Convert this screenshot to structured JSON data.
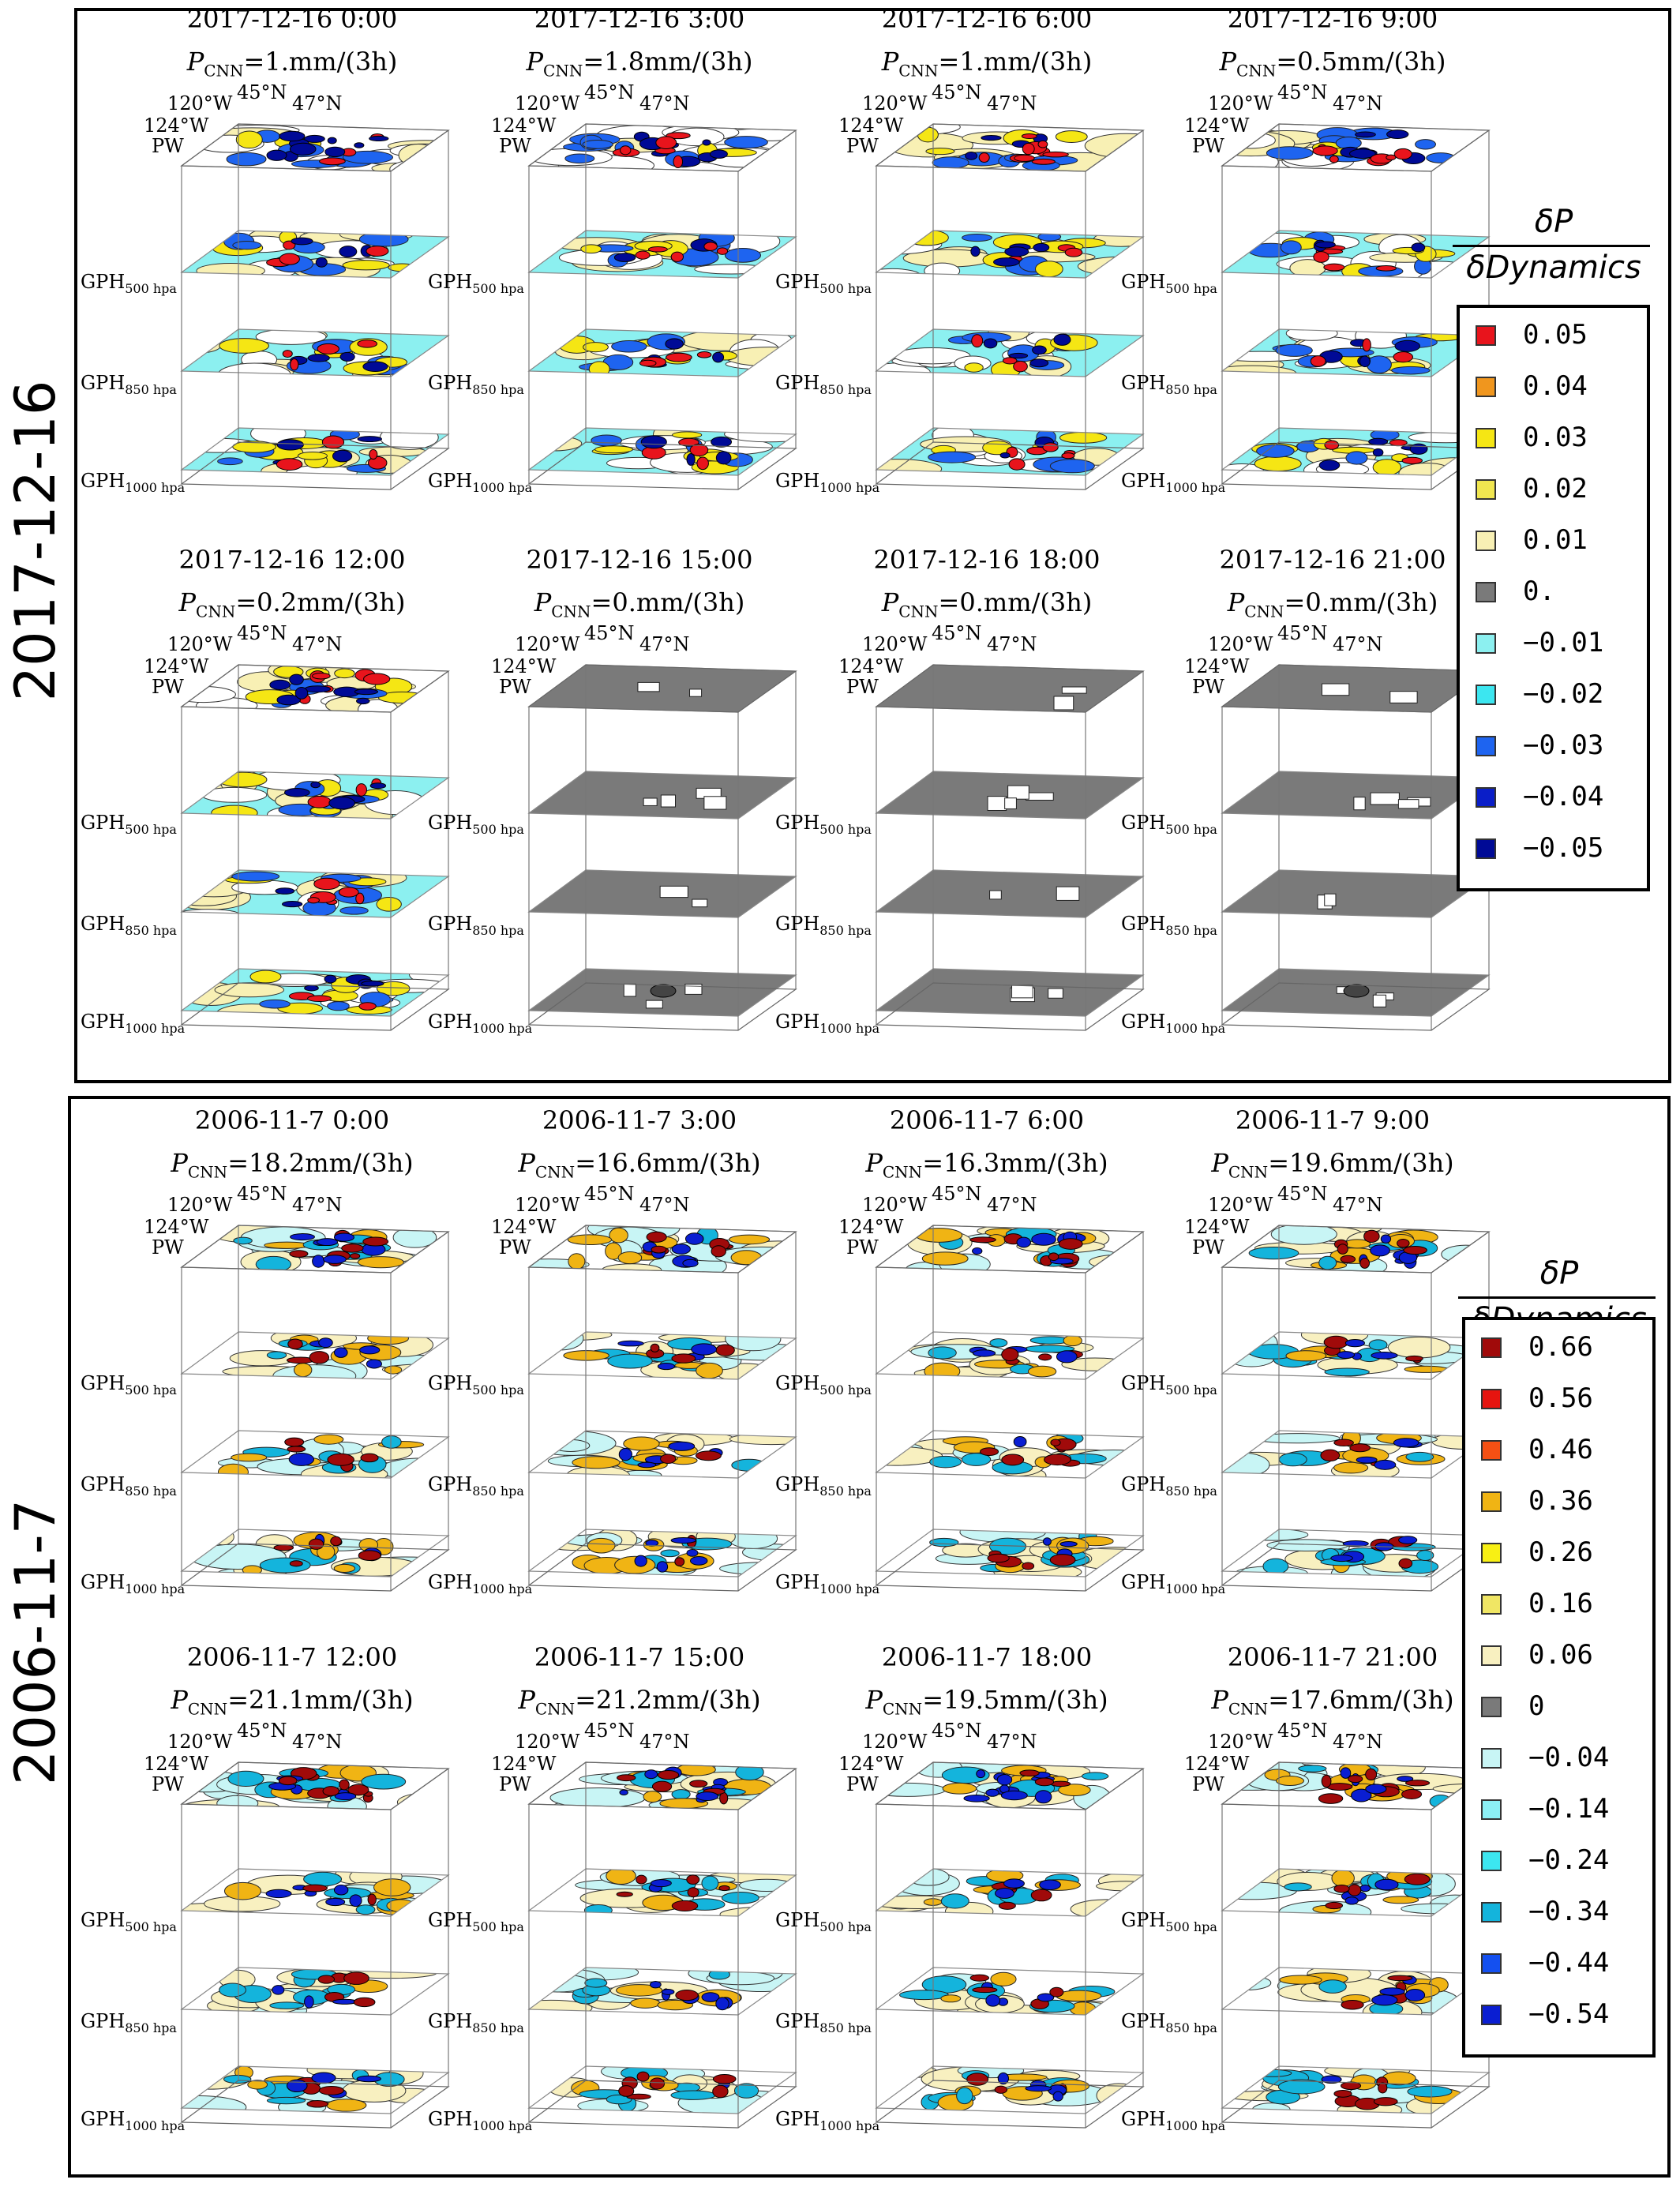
{
  "chart_data": {
    "type": "heatmap",
    "colorbar_label": {
      "numerator": "δP",
      "denominator": "δDynamics"
    },
    "layer_labels": {
      "pw": "PW",
      "gph500": {
        "base": "GPH",
        "sub": "500 hpa"
      },
      "gph850": {
        "base": "GPH",
        "sub": "850 hpa"
      },
      "gph1000": {
        "base": "GPH",
        "sub": "1000 hpa"
      }
    },
    "axis_labels": {
      "lon_a": "120°W",
      "lon_b": "124°W",
      "lat_a": "45°N",
      "lat_b": "47°N"
    },
    "pcnn_prefix": "P",
    "pcnn_sub": "CNN",
    "groups": [
      {
        "label": "2017-12-16",
        "legend": {
          "entries": [
            {
              "value": "0.05",
              "color": "#e8141c"
            },
            {
              "value": "0.04",
              "color": "#f0961e"
            },
            {
              "value": "0.03",
              "color": "#f5e614"
            },
            {
              "value": "0.02",
              "color": "#f0e650"
            },
            {
              "value": "0.01",
              "color": "#f8f0b4"
            },
            {
              "value": "0.",
              "color": "#7a7a7a"
            },
            {
              "value": "-0.01",
              "color": "#8cf0f0"
            },
            {
              "value": "-0.02",
              "color": "#3ce6f0"
            },
            {
              "value": "-0.03",
              "color": "#1e64f0"
            },
            {
              "value": "-0.04",
              "color": "#0a1ec8"
            },
            {
              "value": "-0.05",
              "color": "#000a96"
            }
          ]
        },
        "panels": [
          {
            "time": "2017-12-16 0:00",
            "pcnn": "=1.mm/(3h)",
            "mode": "mixed"
          },
          {
            "time": "2017-12-16 3:00",
            "pcnn": "=1.8mm/(3h)",
            "mode": "mixed"
          },
          {
            "time": "2017-12-16 6:00",
            "pcnn": "=1.mm/(3h)",
            "mode": "mixed"
          },
          {
            "time": "2017-12-16 9:00",
            "pcnn": "=0.5mm/(3h)",
            "mode": "mixed"
          },
          {
            "time": "2017-12-16 12:00",
            "pcnn": "=0.2mm/(3h)",
            "mode": "mixed"
          },
          {
            "time": "2017-12-16 15:00",
            "pcnn": "=0.mm/(3h)",
            "mode": "gray"
          },
          {
            "time": "2017-12-16 18:00",
            "pcnn": "=0.mm/(3h)",
            "mode": "gray"
          },
          {
            "time": "2017-12-16 21:00",
            "pcnn": "=0.mm/(3h)",
            "mode": "gray"
          }
        ]
      },
      {
        "label": "2006-11-7",
        "legend": {
          "entries": [
            {
              "value": "0.66",
              "color": "#a00a0a"
            },
            {
              "value": "0.56",
              "color": "#e6140f"
            },
            {
              "value": "0.46",
              "color": "#f55014"
            },
            {
              "value": "0.36",
              "color": "#f0b414"
            },
            {
              "value": "0.26",
              "color": "#f8f014"
            },
            {
              "value": "0.16",
              "color": "#f0e664"
            },
            {
              "value": "0.06",
              "color": "#f8f0c0"
            },
            {
              "value": "0",
              "color": "#7a7a7a"
            },
            {
              "value": "-0.04",
              "color": "#c8f5f5"
            },
            {
              "value": "-0.14",
              "color": "#8cf0f5"
            },
            {
              "value": "-0.24",
              "color": "#3ce6f0"
            },
            {
              "value": "-0.34",
              "color": "#14b4dc"
            },
            {
              "value": "-0.44",
              "color": "#1450f0"
            },
            {
              "value": "-0.54",
              "color": "#0a1ed2"
            }
          ]
        },
        "panels": [
          {
            "time": "2006-11-7 0:00",
            "pcnn": "=18.2mm/(3h)",
            "mode": "mixed"
          },
          {
            "time": "2006-11-7 3:00",
            "pcnn": "=16.6mm/(3h)",
            "mode": "mixed"
          },
          {
            "time": "2006-11-7 6:00",
            "pcnn": "=16.3mm/(3h)",
            "mode": "mixed"
          },
          {
            "time": "2006-11-7 9:00",
            "pcnn": "=19.6mm/(3h)",
            "mode": "mixed"
          },
          {
            "time": "2006-11-7 12:00",
            "pcnn": "=21.1mm/(3h)",
            "mode": "mixed"
          },
          {
            "time": "2006-11-7 15:00",
            "pcnn": "=21.2mm/(3h)",
            "mode": "mixed"
          },
          {
            "time": "2006-11-7 18:00",
            "pcnn": "=19.5mm/(3h)",
            "mode": "mixed"
          },
          {
            "time": "2006-11-7 21:00",
            "pcnn": "=17.6mm/(3h)",
            "mode": "mixed"
          }
        ]
      }
    ]
  }
}
